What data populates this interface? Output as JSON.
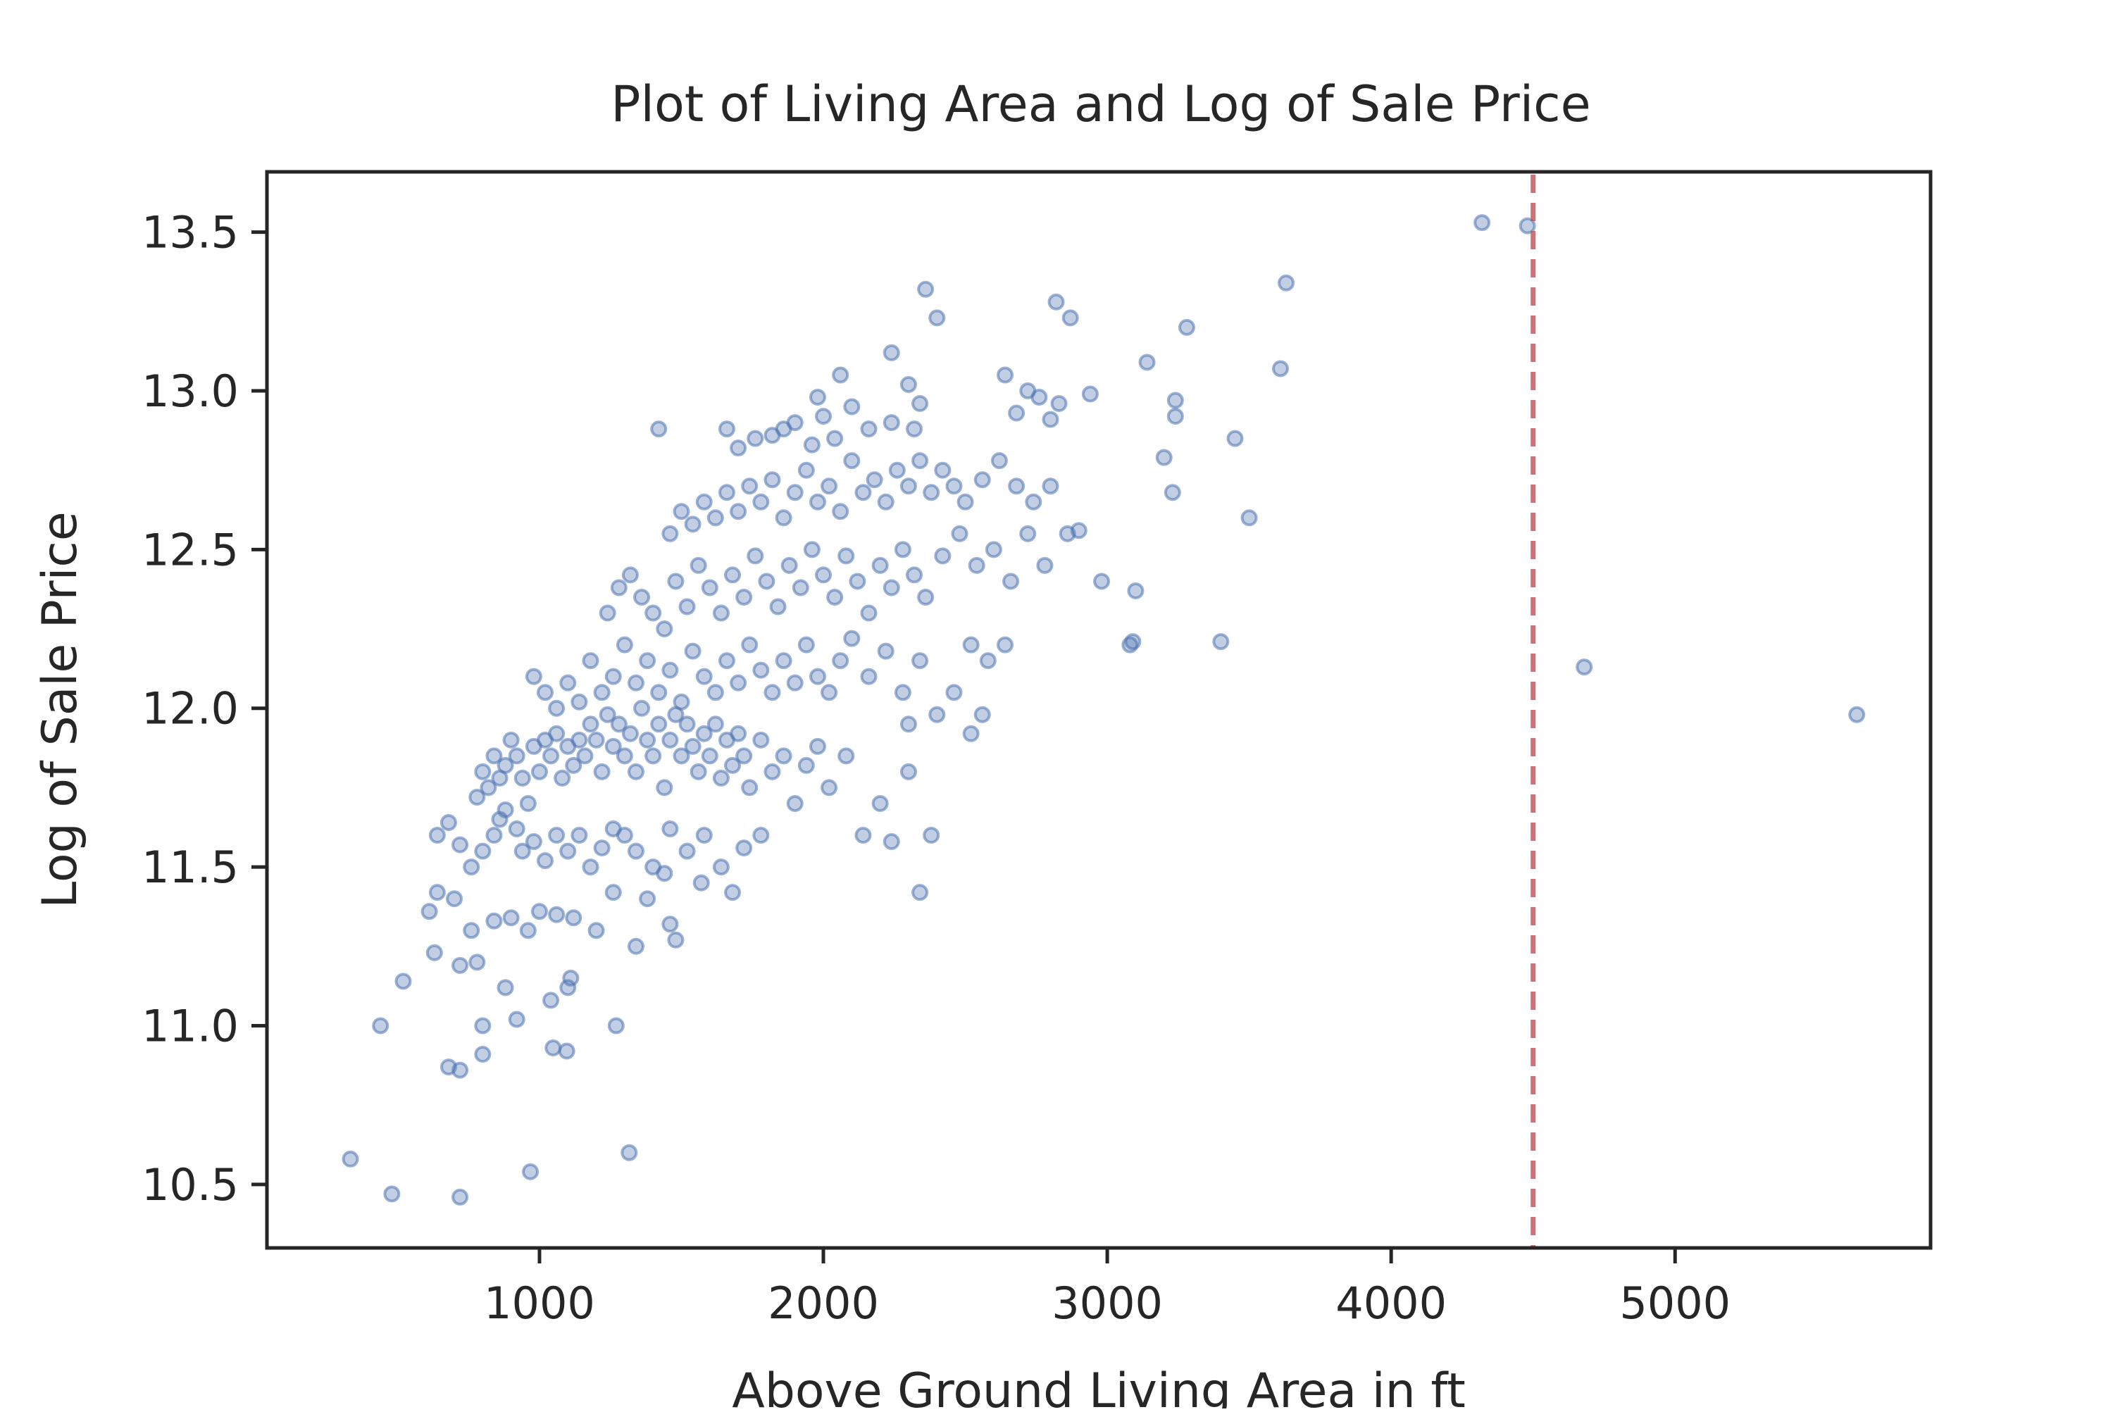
{
  "chart_data": {
    "type": "scatter",
    "title": "Plot of Living Area and Log of Sale Price",
    "xlabel": "Above Ground Living Area in ft",
    "ylabel": "Log of Sale Price",
    "xlim": [
      40,
      5900
    ],
    "ylim": [
      10.3,
      13.69
    ],
    "xticks": [
      1000,
      2000,
      3000,
      4000,
      5000
    ],
    "xtick_labels": [
      "1000",
      "2000",
      "3000",
      "4000",
      "5000"
    ],
    "yticks": [
      10.5,
      11.0,
      11.5,
      12.0,
      12.5,
      13.0,
      13.5
    ],
    "ytick_labels": [
      "10.5",
      "11.0",
      "11.5",
      "12.0",
      "12.5",
      "13.0",
      "13.5"
    ],
    "grid": false,
    "colors": {
      "points": "#4c72b0",
      "threshold_line": "#c44e52",
      "axes": "#262626"
    },
    "threshold_line": {
      "orientation": "vertical",
      "x": 4500,
      "style": "dashed"
    },
    "series": [
      {
        "points": [
          [
            334,
            10.58
          ],
          [
            480,
            10.47
          ],
          [
            720,
            10.46
          ],
          [
            968,
            10.54
          ],
          [
            1316,
            10.6
          ],
          [
            680,
            10.87
          ],
          [
            720,
            10.86
          ],
          [
            800,
            10.91
          ],
          [
            1048,
            10.93
          ],
          [
            1096,
            10.92
          ],
          [
            440,
            11.0
          ],
          [
            800,
            11.0
          ],
          [
            920,
            11.02
          ],
          [
            1040,
            11.08
          ],
          [
            1270,
            11.0
          ],
          [
            520,
            11.14
          ],
          [
            720,
            11.19
          ],
          [
            780,
            11.2
          ],
          [
            880,
            11.12
          ],
          [
            1100,
            11.12
          ],
          [
            1110,
            11.15
          ],
          [
            630,
            11.23
          ],
          [
            1340,
            11.25
          ],
          [
            1460,
            11.32
          ],
          [
            1480,
            11.27
          ],
          [
            1570,
            11.45
          ],
          [
            1680,
            11.42
          ],
          [
            612,
            11.36
          ],
          [
            640,
            11.42
          ],
          [
            700,
            11.4
          ],
          [
            760,
            11.3
          ],
          [
            840,
            11.33
          ],
          [
            900,
            11.34
          ],
          [
            960,
            11.3
          ],
          [
            1000,
            11.36
          ],
          [
            1060,
            11.35
          ],
          [
            1120,
            11.34
          ],
          [
            1200,
            11.3
          ],
          [
            1260,
            11.42
          ],
          [
            1380,
            11.4
          ],
          [
            1440,
            11.48
          ],
          [
            640,
            11.6
          ],
          [
            680,
            11.64
          ],
          [
            720,
            11.57
          ],
          [
            760,
            11.5
          ],
          [
            800,
            11.55
          ],
          [
            840,
            11.6
          ],
          [
            860,
            11.65
          ],
          [
            880,
            11.68
          ],
          [
            920,
            11.62
          ],
          [
            940,
            11.55
          ],
          [
            980,
            11.58
          ],
          [
            1020,
            11.52
          ],
          [
            1060,
            11.6
          ],
          [
            1100,
            11.55
          ],
          [
            1140,
            11.6
          ],
          [
            1180,
            11.5
          ],
          [
            1220,
            11.56
          ],
          [
            1260,
            11.62
          ],
          [
            1300,
            11.6
          ],
          [
            1340,
            11.55
          ],
          [
            1400,
            11.5
          ],
          [
            1460,
            11.62
          ],
          [
            1520,
            11.55
          ],
          [
            1580,
            11.6
          ],
          [
            1640,
            11.5
          ],
          [
            1720,
            11.56
          ],
          [
            1780,
            11.6
          ],
          [
            780,
            11.72
          ],
          [
            800,
            11.8
          ],
          [
            820,
            11.75
          ],
          [
            840,
            11.85
          ],
          [
            860,
            11.78
          ],
          [
            880,
            11.82
          ],
          [
            900,
            11.9
          ],
          [
            920,
            11.85
          ],
          [
            940,
            11.78
          ],
          [
            960,
            11.7
          ],
          [
            980,
            11.88
          ],
          [
            1000,
            11.8
          ],
          [
            1020,
            11.9
          ],
          [
            1040,
            11.85
          ],
          [
            1060,
            11.92
          ],
          [
            1080,
            11.78
          ],
          [
            1100,
            11.88
          ],
          [
            1120,
            11.82
          ],
          [
            1140,
            11.9
          ],
          [
            1160,
            11.85
          ],
          [
            1180,
            11.95
          ],
          [
            1200,
            11.9
          ],
          [
            1220,
            11.8
          ],
          [
            1240,
            11.98
          ],
          [
            1260,
            11.88
          ],
          [
            1280,
            11.95
          ],
          [
            1300,
            11.85
          ],
          [
            1320,
            11.92
          ],
          [
            1340,
            11.8
          ],
          [
            1360,
            12.0
          ],
          [
            1380,
            11.9
          ],
          [
            1400,
            11.85
          ],
          [
            1420,
            11.95
          ],
          [
            1440,
            11.75
          ],
          [
            1460,
            11.9
          ],
          [
            1480,
            11.98
          ],
          [
            1500,
            11.85
          ],
          [
            1520,
            11.95
          ],
          [
            1540,
            11.88
          ],
          [
            1560,
            11.8
          ],
          [
            1580,
            11.92
          ],
          [
            1600,
            11.85
          ],
          [
            1620,
            11.95
          ],
          [
            1640,
            11.78
          ],
          [
            1660,
            11.9
          ],
          [
            1680,
            11.82
          ],
          [
            1700,
            11.92
          ],
          [
            1720,
            11.85
          ],
          [
            1740,
            11.75
          ],
          [
            1780,
            11.9
          ],
          [
            1820,
            11.8
          ],
          [
            1860,
            11.85
          ],
          [
            1900,
            11.7
          ],
          [
            1940,
            11.82
          ],
          [
            1980,
            11.88
          ],
          [
            2020,
            11.75
          ],
          [
            2080,
            11.85
          ],
          [
            2140,
            11.6
          ],
          [
            2200,
            11.7
          ],
          [
            2240,
            11.58
          ],
          [
            2300,
            11.8
          ],
          [
            2340,
            11.42
          ],
          [
            2380,
            11.6
          ],
          [
            980,
            12.1
          ],
          [
            1020,
            12.05
          ],
          [
            1060,
            12.0
          ],
          [
            1100,
            12.08
          ],
          [
            1140,
            12.02
          ],
          [
            1180,
            12.15
          ],
          [
            1220,
            12.05
          ],
          [
            1260,
            12.1
          ],
          [
            1300,
            12.2
          ],
          [
            1340,
            12.08
          ],
          [
            1380,
            12.15
          ],
          [
            1420,
            12.05
          ],
          [
            1460,
            12.12
          ],
          [
            1500,
            12.02
          ],
          [
            1540,
            12.18
          ],
          [
            1580,
            12.1
          ],
          [
            1620,
            12.05
          ],
          [
            1660,
            12.15
          ],
          [
            1700,
            12.08
          ],
          [
            1740,
            12.2
          ],
          [
            1780,
            12.12
          ],
          [
            1820,
            12.05
          ],
          [
            1860,
            12.15
          ],
          [
            1900,
            12.08
          ],
          [
            1940,
            12.2
          ],
          [
            1980,
            12.1
          ],
          [
            2020,
            12.05
          ],
          [
            2060,
            12.15
          ],
          [
            2100,
            12.22
          ],
          [
            2160,
            12.1
          ],
          [
            2220,
            12.18
          ],
          [
            2280,
            12.05
          ],
          [
            2340,
            12.15
          ],
          [
            2400,
            11.98
          ],
          [
            2460,
            12.05
          ],
          [
            2520,
            12.2
          ],
          [
            2580,
            12.15
          ],
          [
            2640,
            12.2
          ],
          [
            2520,
            11.92
          ],
          [
            2560,
            11.98
          ],
          [
            2300,
            11.95
          ],
          [
            1240,
            12.3
          ],
          [
            1280,
            12.38
          ],
          [
            1320,
            12.42
          ],
          [
            1360,
            12.35
          ],
          [
            1400,
            12.3
          ],
          [
            1440,
            12.25
          ],
          [
            1480,
            12.4
          ],
          [
            1520,
            12.32
          ],
          [
            1560,
            12.45
          ],
          [
            1600,
            12.38
          ],
          [
            1640,
            12.3
          ],
          [
            1680,
            12.42
          ],
          [
            1720,
            12.35
          ],
          [
            1760,
            12.48
          ],
          [
            1800,
            12.4
          ],
          [
            1840,
            12.32
          ],
          [
            1880,
            12.45
          ],
          [
            1920,
            12.38
          ],
          [
            1960,
            12.5
          ],
          [
            2000,
            12.42
          ],
          [
            2040,
            12.35
          ],
          [
            2080,
            12.48
          ],
          [
            2120,
            12.4
          ],
          [
            2160,
            12.3
          ],
          [
            2200,
            12.45
          ],
          [
            2240,
            12.38
          ],
          [
            2280,
            12.5
          ],
          [
            2320,
            12.42
          ],
          [
            2360,
            12.35
          ],
          [
            2420,
            12.48
          ],
          [
            2480,
            12.55
          ],
          [
            2540,
            12.45
          ],
          [
            2600,
            12.5
          ],
          [
            2660,
            12.4
          ],
          [
            2720,
            12.55
          ],
          [
            2780,
            12.45
          ],
          [
            2860,
            12.55
          ],
          [
            2900,
            12.56
          ],
          [
            2980,
            12.4
          ],
          [
            3100,
            12.37
          ],
          [
            3080,
            12.2
          ],
          [
            3090,
            12.21
          ],
          [
            1460,
            12.55
          ],
          [
            1500,
            12.62
          ],
          [
            1540,
            12.58
          ],
          [
            1580,
            12.65
          ],
          [
            1620,
            12.6
          ],
          [
            1660,
            12.68
          ],
          [
            1700,
            12.62
          ],
          [
            1740,
            12.7
          ],
          [
            1780,
            12.65
          ],
          [
            1820,
            12.72
          ],
          [
            1860,
            12.6
          ],
          [
            1900,
            12.68
          ],
          [
            1940,
            12.75
          ],
          [
            1980,
            12.65
          ],
          [
            2020,
            12.7
          ],
          [
            2060,
            12.62
          ],
          [
            2100,
            12.78
          ],
          [
            2140,
            12.68
          ],
          [
            2180,
            12.72
          ],
          [
            2220,
            12.65
          ],
          [
            2260,
            12.75
          ],
          [
            2300,
            12.7
          ],
          [
            2340,
            12.78
          ],
          [
            2380,
            12.68
          ],
          [
            2420,
            12.75
          ],
          [
            2460,
            12.7
          ],
          [
            2500,
            12.65
          ],
          [
            2560,
            12.72
          ],
          [
            2620,
            12.78
          ],
          [
            2680,
            12.7
          ],
          [
            2740,
            12.65
          ],
          [
            2800,
            12.7
          ],
          [
            1660,
            12.88
          ],
          [
            1700,
            12.82
          ],
          [
            1760,
            12.85
          ],
          [
            1820,
            12.86
          ],
          [
            1860,
            12.88
          ],
          [
            1900,
            12.9
          ],
          [
            1960,
            12.83
          ],
          [
            2000,
            12.92
          ],
          [
            2040,
            12.85
          ],
          [
            2100,
            12.95
          ],
          [
            2160,
            12.88
          ],
          [
            2240,
            12.9
          ],
          [
            2320,
            12.88
          ],
          [
            1420,
            12.88
          ],
          [
            1980,
            12.98
          ],
          [
            2060,
            13.05
          ],
          [
            2240,
            13.12
          ],
          [
            2300,
            13.02
          ],
          [
            2340,
            12.96
          ],
          [
            2640,
            13.05
          ],
          [
            2680,
            12.93
          ],
          [
            2720,
            13.0
          ],
          [
            2760,
            12.98
          ],
          [
            2800,
            12.91
          ],
          [
            2830,
            12.96
          ],
          [
            2940,
            12.99
          ],
          [
            2360,
            13.32
          ],
          [
            2400,
            13.23
          ],
          [
            2820,
            13.28
          ],
          [
            2870,
            13.23
          ],
          [
            3140,
            13.09
          ],
          [
            3280,
            13.2
          ],
          [
            3240,
            12.97
          ],
          [
            3240,
            12.92
          ],
          [
            3200,
            12.79
          ],
          [
            3230,
            12.68
          ],
          [
            3450,
            12.85
          ],
          [
            3500,
            12.6
          ],
          [
            3400,
            12.21
          ],
          [
            3610,
            13.07
          ],
          [
            3630,
            13.34
          ],
          [
            4320,
            13.53
          ],
          [
            4480,
            13.52
          ],
          [
            4680,
            12.13
          ],
          [
            5640,
            11.98
          ]
        ]
      }
    ]
  }
}
